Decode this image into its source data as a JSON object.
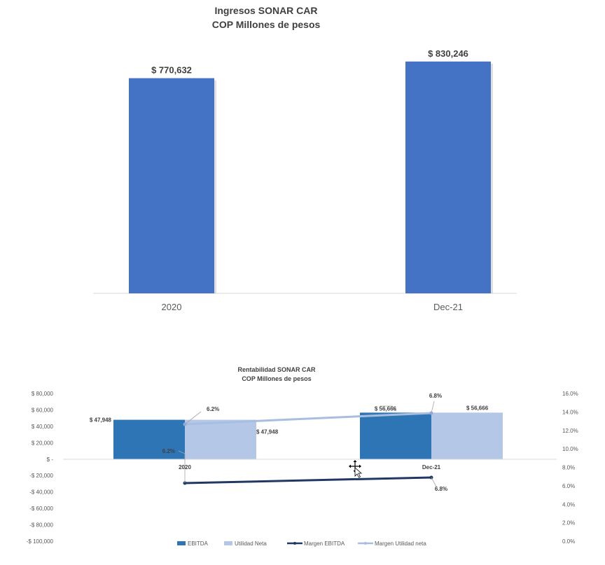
{
  "chart_data": [
    {
      "type": "bar",
      "title": "Ingresos SONAR CAR",
      "subtitle": "COP Millones de pesos",
      "categories": [
        "2020",
        "Dec-21"
      ],
      "values": [
        770632,
        830246
      ],
      "data_labels": [
        "$ 770,632",
        "$ 830,246"
      ],
      "ylim": [
        0,
        860000
      ],
      "grid": false,
      "color": "#4472C4"
    },
    {
      "type": "bar",
      "title": "Rentabilidad SONAR CAR",
      "subtitle": "COP Millones de pesos",
      "categories": [
        "2020",
        "Dec-21"
      ],
      "series": [
        {
          "name": "EBITDA",
          "kind": "bar",
          "axis": "left",
          "color": "#2E75B6",
          "values": [
            47948,
            56666
          ],
          "data_labels": [
            "$ 47,948",
            "$ 56,666"
          ]
        },
        {
          "name": "Utilidad Neta",
          "kind": "bar",
          "axis": "left",
          "color": "#B4C7E7",
          "values": [
            47948,
            56666
          ],
          "data_labels": [
            "$ 47,948",
            "$ 56,666"
          ]
        },
        {
          "name": "Margen EBITDA",
          "kind": "line",
          "axis": "right",
          "color": "#203864",
          "values": [
            6.2,
            6.8
          ],
          "data_labels": [
            "6.2%",
            "6.8%"
          ]
        },
        {
          "name": "Margen Utilidad neta",
          "kind": "line",
          "axis": "right",
          "color": "#A9BEDF",
          "values": [
            6.2,
            6.8
          ],
          "data_labels": [
            "6.2%",
            "6.8%"
          ]
        }
      ],
      "y_left": {
        "range": [
          -100000,
          80000
        ],
        "ticks": [
          "$ 80,000",
          "$ 60,000",
          "$ 40,000",
          "$ 20,000",
          "$ -",
          "-$ 20,000",
          "-$ 40,000",
          "-$ 60,000",
          "-$ 80,000",
          "-$ 100,000"
        ]
      },
      "y_right": {
        "range": [
          0,
          16
        ],
        "ticks": [
          "16.0%",
          "14.0%",
          "12.0%",
          "10.0%",
          "8.0%",
          "6.0%",
          "4.0%",
          "2.0%",
          "0.0%"
        ]
      },
      "legend_position": "bottom",
      "grid": false
    }
  ]
}
